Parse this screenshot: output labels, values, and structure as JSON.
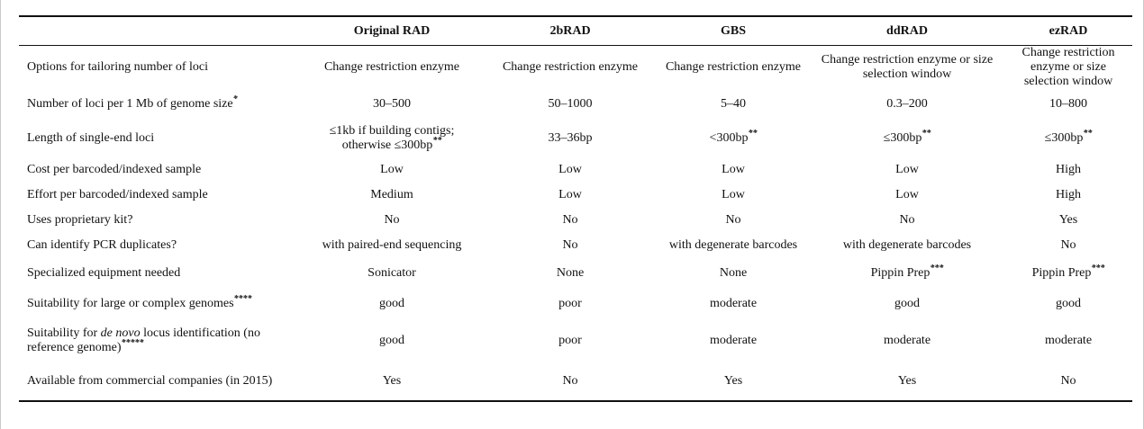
{
  "columns": [
    "",
    "Original RAD",
    "2bRAD",
    "GBS",
    "ddRAD",
    "ezRAD"
  ],
  "rows": [
    {
      "label": "Options for tailoring number of loci",
      "label_sup": "",
      "cells": [
        {
          "text": "Change restriction enzyme",
          "sup": ""
        },
        {
          "text": "Change restriction enzyme",
          "sup": ""
        },
        {
          "text": "Change restriction enzyme",
          "sup": ""
        },
        {
          "text": "Change restriction enzyme or size selection window",
          "sup": ""
        },
        {
          "text": "Change restriction enzyme or size selection window",
          "sup": ""
        }
      ]
    },
    {
      "label": "Number of loci per 1 Mb of genome size",
      "label_sup": "*",
      "cells": [
        {
          "text": "30–500",
          "sup": ""
        },
        {
          "text": "50–1000",
          "sup": ""
        },
        {
          "text": "5–40",
          "sup": ""
        },
        {
          "text": "0.3–200",
          "sup": ""
        },
        {
          "text": "10–800",
          "sup": ""
        }
      ]
    },
    {
      "label": "Length of single-end loci",
      "label_sup": "",
      "cells": [
        {
          "text": "≤1kb if building contigs; otherwise ≤300bp",
          "sup": "**"
        },
        {
          "text": "33–36bp",
          "sup": ""
        },
        {
          "text": "<300bp",
          "sup": "**"
        },
        {
          "text": "≤300bp",
          "sup": "**"
        },
        {
          "text": "≤300bp",
          "sup": "**"
        }
      ]
    },
    {
      "label": "Cost per barcoded/indexed sample",
      "label_sup": "",
      "cells": [
        {
          "text": "Low",
          "sup": ""
        },
        {
          "text": "Low",
          "sup": ""
        },
        {
          "text": "Low",
          "sup": ""
        },
        {
          "text": "Low",
          "sup": ""
        },
        {
          "text": "High",
          "sup": ""
        }
      ]
    },
    {
      "label": "Effort per barcoded/indexed sample",
      "label_sup": "",
      "cells": [
        {
          "text": "Medium",
          "sup": ""
        },
        {
          "text": "Low",
          "sup": ""
        },
        {
          "text": "Low",
          "sup": ""
        },
        {
          "text": "Low",
          "sup": ""
        },
        {
          "text": "High",
          "sup": ""
        }
      ]
    },
    {
      "label": "Uses proprietary kit?",
      "label_sup": "",
      "cells": [
        {
          "text": "No",
          "sup": ""
        },
        {
          "text": "No",
          "sup": ""
        },
        {
          "text": "No",
          "sup": ""
        },
        {
          "text": "No",
          "sup": ""
        },
        {
          "text": "Yes",
          "sup": ""
        }
      ]
    },
    {
      "label": "Can identify PCR duplicates?",
      "label_sup": "",
      "cells": [
        {
          "text": "with paired-end sequencing",
          "sup": ""
        },
        {
          "text": "No",
          "sup": ""
        },
        {
          "text": "with degenerate barcodes",
          "sup": ""
        },
        {
          "text": "with degenerate barcodes",
          "sup": ""
        },
        {
          "text": "No",
          "sup": ""
        }
      ]
    },
    {
      "label": "Specialized equipment needed",
      "label_sup": "",
      "cells": [
        {
          "text": "Sonicator",
          "sup": ""
        },
        {
          "text": "None",
          "sup": ""
        },
        {
          "text": "None",
          "sup": ""
        },
        {
          "text": "Pippin Prep",
          "sup": "***"
        },
        {
          "text": "Pippin Prep",
          "sup": "***"
        }
      ]
    },
    {
      "label": "Suitability for large or complex genomes",
      "label_sup": "****",
      "cells": [
        {
          "text": "good",
          "sup": ""
        },
        {
          "text": "poor",
          "sup": ""
        },
        {
          "text": "moderate",
          "sup": ""
        },
        {
          "text": "good",
          "sup": ""
        },
        {
          "text": "good",
          "sup": ""
        }
      ]
    },
    {
      "label_pre": "Suitability for ",
      "label_em": "de novo",
      "label_post": " locus identification (no reference genome)",
      "label_sup": "*****",
      "cells": [
        {
          "text": "good",
          "sup": ""
        },
        {
          "text": "poor",
          "sup": ""
        },
        {
          "text": "moderate",
          "sup": ""
        },
        {
          "text": "moderate",
          "sup": ""
        },
        {
          "text": "moderate",
          "sup": ""
        }
      ]
    },
    {
      "label": "Available from commercial companies (in 2015)",
      "label_sup": "",
      "cells": [
        {
          "text": "Yes",
          "sup": ""
        },
        {
          "text": "No",
          "sup": ""
        },
        {
          "text": "Yes",
          "sup": ""
        },
        {
          "text": "Yes",
          "sup": ""
        },
        {
          "text": "No",
          "sup": ""
        }
      ]
    }
  ]
}
